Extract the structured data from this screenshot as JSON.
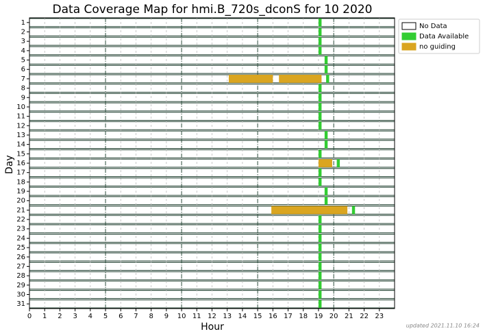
{
  "chart_data": {
    "type": "broken_barh",
    "title": "Data Coverage Map for hmi.B_720s_dconS for 10 2020",
    "x_label": "Hour",
    "y_label": "Day",
    "xlim": [
      0,
      24
    ],
    "xticks": [
      0,
      1,
      2,
      3,
      4,
      5,
      6,
      7,
      8,
      9,
      10,
      11,
      12,
      13,
      14,
      15,
      16,
      17,
      18,
      19,
      20,
      21,
      22,
      23
    ],
    "ylim": [
      31.5,
      0.5
    ],
    "yticks": [
      1,
      2,
      3,
      4,
      5,
      6,
      7,
      8,
      9,
      10,
      11,
      12,
      13,
      14,
      15,
      16,
      17,
      18,
      19,
      20,
      21,
      22,
      23,
      24,
      25,
      26,
      27,
      28,
      29,
      30,
      31
    ],
    "major_lines": [
      5,
      10,
      15,
      20
    ],
    "grid": true,
    "legend": "outside upper right",
    "footer": "updated 2021.11.10 16:24",
    "series": [
      {
        "name": "No Data",
        "color": "#ffffff",
        "intervals": []
      },
      {
        "name": "Data Available",
        "color": "#32cd32",
        "intervals": [
          {
            "day": 1,
            "start": 19.0,
            "end": 19.2
          },
          {
            "day": 2,
            "start": 19.0,
            "end": 19.2
          },
          {
            "day": 3,
            "start": 19.0,
            "end": 19.2
          },
          {
            "day": 4,
            "start": 19.0,
            "end": 19.2
          },
          {
            "day": 5,
            "start": 19.4,
            "end": 19.6
          },
          {
            "day": 6,
            "start": 19.4,
            "end": 19.6
          },
          {
            "day": 7,
            "start": 19.5,
            "end": 19.7
          },
          {
            "day": 8,
            "start": 19.0,
            "end": 19.2
          },
          {
            "day": 9,
            "start": 19.0,
            "end": 19.2
          },
          {
            "day": 10,
            "start": 19.0,
            "end": 19.2
          },
          {
            "day": 11,
            "start": 19.0,
            "end": 19.2
          },
          {
            "day": 12,
            "start": 19.0,
            "end": 19.2
          },
          {
            "day": 13,
            "start": 19.4,
            "end": 19.6
          },
          {
            "day": 14,
            "start": 19.4,
            "end": 19.6
          },
          {
            "day": 15,
            "start": 19.0,
            "end": 19.2
          },
          {
            "day": 16,
            "start": 20.2,
            "end": 20.4
          },
          {
            "day": 17,
            "start": 19.0,
            "end": 19.2
          },
          {
            "day": 18,
            "start": 19.0,
            "end": 19.2
          },
          {
            "day": 19,
            "start": 19.4,
            "end": 19.6
          },
          {
            "day": 20,
            "start": 19.4,
            "end": 19.6
          },
          {
            "day": 21,
            "start": 21.2,
            "end": 21.4
          },
          {
            "day": 22,
            "start": 19.0,
            "end": 19.2
          },
          {
            "day": 23,
            "start": 19.0,
            "end": 19.2
          },
          {
            "day": 24,
            "start": 19.0,
            "end": 19.2
          },
          {
            "day": 25,
            "start": 19.0,
            "end": 19.2
          },
          {
            "day": 26,
            "start": 19.0,
            "end": 19.2
          },
          {
            "day": 27,
            "start": 19.0,
            "end": 19.2
          },
          {
            "day": 28,
            "start": 19.0,
            "end": 19.2
          },
          {
            "day": 29,
            "start": 19.0,
            "end": 19.2
          },
          {
            "day": 30,
            "start": 19.0,
            "end": 19.2
          },
          {
            "day": 31,
            "start": 19.0,
            "end": 19.2
          }
        ]
      },
      {
        "name": "no guiding",
        "color": "#daa520",
        "intervals": [
          {
            "day": 7,
            "start": 13.1,
            "end": 16.0
          },
          {
            "day": 7,
            "start": 16.4,
            "end": 19.2
          },
          {
            "day": 16,
            "start": 19.0,
            "end": 19.9
          },
          {
            "day": 21,
            "start": 15.9,
            "end": 20.9
          }
        ]
      }
    ]
  }
}
